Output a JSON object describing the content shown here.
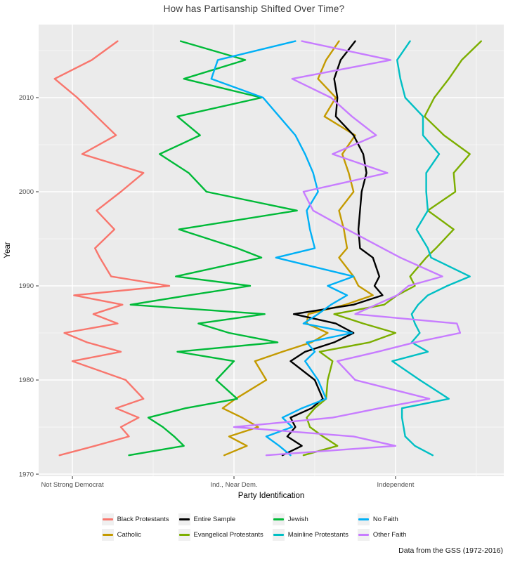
{
  "title": "How has Partisanship Shifted Over Time?",
  "caption": "Data from the GSS (1972-2016)",
  "axes": {
    "x_label": "Party Identification",
    "y_label": "Year"
  },
  "legend": [
    {
      "label": "Black Protestants",
      "color": "#F8766D"
    },
    {
      "label": "Catholic",
      "color": "#C49A00"
    },
    {
      "label": "Entire Sample",
      "color": "#000000"
    },
    {
      "label": "Evangelical Protestants",
      "color": "#7CAE00"
    },
    {
      "label": "Jewish",
      "color": "#00BA38"
    },
    {
      "label": "Mainline Protestants",
      "color": "#00BFC4"
    },
    {
      "label": "No Faith",
      "color": "#00B0F6"
    },
    {
      "label": "Other Faith",
      "color": "#C77CFF"
    }
  ],
  "chart_data": {
    "type": "line",
    "title": "How has Partisanship Shifted Over Time?",
    "xlabel": "Party Identification",
    "ylabel": "Year",
    "legend_position": "bottom",
    "grid": true,
    "panel_color": "#EBEBEB",
    "xlim": [
      1.791,
      4.67
    ],
    "ylim": [
      1969.78,
      2017.76
    ],
    "x_ticks": [
      {
        "value": 2,
        "label": "Not Strong Democrat"
      },
      {
        "value": 3,
        "label": "Ind., Near Dem."
      },
      {
        "value": 4,
        "label": "Independent"
      }
    ],
    "x_minor": [
      2.5,
      3.5,
      4.5
    ],
    "y_ticks": [
      1970,
      1980,
      1990,
      2000,
      2010
    ],
    "y_minor": [
      1975,
      1985,
      1995,
      2005,
      2015
    ],
    "years": [
      1972,
      1973,
      1974,
      1975,
      1976,
      1977,
      1978,
      1980,
      1982,
      1983,
      1984,
      1985,
      1986,
      1987,
      1988,
      1989,
      1990,
      1991,
      1993,
      1994,
      1996,
      1998,
      2000,
      2002,
      2004,
      2006,
      2008,
      2010,
      2012,
      2014,
      2016
    ],
    "series": [
      {
        "name": "Black Protestants",
        "color": "#F8766D",
        "values": [
          1.92,
          2.14,
          2.35,
          2.3,
          2.41,
          2.27,
          2.44,
          2.33,
          2.0,
          2.3,
          2.09,
          1.95,
          2.28,
          2.13,
          2.31,
          2.01,
          2.6,
          2.24,
          2.17,
          2.14,
          2.26,
          2.15,
          2.3,
          2.44,
          2.06,
          2.27,
          2.15,
          2.03,
          1.89,
          2.12,
          2.28
        ]
      },
      {
        "name": "Catholic",
        "color": "#C49A00",
        "values": [
          2.94,
          3.08,
          2.97,
          3.15,
          3.05,
          2.93,
          3.01,
          3.2,
          3.13,
          3.3,
          3.48,
          3.58,
          3.45,
          3.46,
          3.69,
          3.86,
          3.77,
          3.74,
          3.65,
          3.7,
          3.68,
          3.65,
          3.74,
          3.71,
          3.67,
          3.75,
          3.56,
          3.63,
          3.52,
          3.57,
          3.65
        ]
      },
      {
        "name": "Entire Sample",
        "color": "#000000",
        "values": [
          3.3,
          3.42,
          3.33,
          3.38,
          3.35,
          3.48,
          3.55,
          3.5,
          3.35,
          3.44,
          3.62,
          3.74,
          3.63,
          3.37,
          3.74,
          3.92,
          3.87,
          3.9,
          3.86,
          3.78,
          3.77,
          3.78,
          3.79,
          3.82,
          3.8,
          3.74,
          3.63,
          3.64,
          3.62,
          3.66,
          3.75
        ]
      },
      {
        "name": "Evangelical Protestants",
        "color": "#7CAE00",
        "values": [
          3.43,
          3.64,
          3.55,
          3.47,
          3.45,
          3.5,
          3.57,
          3.58,
          3.61,
          3.53,
          3.84,
          4.0,
          3.8,
          3.62,
          3.93,
          4.01,
          4.12,
          4.09,
          4.19,
          4.25,
          4.36,
          4.2,
          4.37,
          4.36,
          4.46,
          4.3,
          4.18,
          4.24,
          4.33,
          4.41,
          4.53
        ]
      },
      {
        "name": "Jewish",
        "color": "#00BA38",
        "values": [
          2.35,
          2.69,
          2.63,
          2.56,
          2.47,
          2.7,
          3.02,
          2.89,
          3.0,
          2.65,
          3.27,
          2.97,
          2.78,
          3.19,
          2.36,
          2.72,
          3.1,
          2.64,
          3.17,
          3.02,
          2.66,
          3.39,
          2.83,
          2.72,
          2.54,
          2.79,
          2.65,
          3.17,
          2.69,
          3.07,
          2.67
        ]
      },
      {
        "name": "Mainline Protestants",
        "color": "#00BFC4",
        "values": [
          4.23,
          4.12,
          4.06,
          4.05,
          4.04,
          4.04,
          4.33,
          4.15,
          3.98,
          4.2,
          4.1,
          4.15,
          4.12,
          4.1,
          4.14,
          4.2,
          4.32,
          4.46,
          4.22,
          4.2,
          4.13,
          4.2,
          4.19,
          4.19,
          4.27,
          4.17,
          4.17,
          4.06,
          4.03,
          4.01,
          4.09
        ]
      },
      {
        "name": "No Faith",
        "color": "#00B0F6",
        "values": [
          3.35,
          3.28,
          3.2,
          3.36,
          3.3,
          3.42,
          3.57,
          3.52,
          3.44,
          3.5,
          3.45,
          3.73,
          3.43,
          3.52,
          3.6,
          3.7,
          3.58,
          3.74,
          3.26,
          3.5,
          3.47,
          3.45,
          3.52,
          3.49,
          3.44,
          3.38,
          3.28,
          3.18,
          2.86,
          2.9,
          3.38
        ]
      },
      {
        "name": "Other Faith",
        "color": "#C77CFF",
        "values": [
          3.2,
          4.0,
          3.74,
          3.0,
          3.61,
          3.9,
          4.21,
          3.75,
          3.64,
          3.89,
          4.12,
          4.4,
          4.38,
          3.75,
          3.88,
          4.01,
          4.08,
          4.29,
          4.03,
          3.92,
          3.7,
          3.49,
          3.43,
          3.95,
          3.61,
          3.88,
          3.73,
          3.6,
          3.36,
          3.97,
          3.42
        ]
      }
    ]
  }
}
